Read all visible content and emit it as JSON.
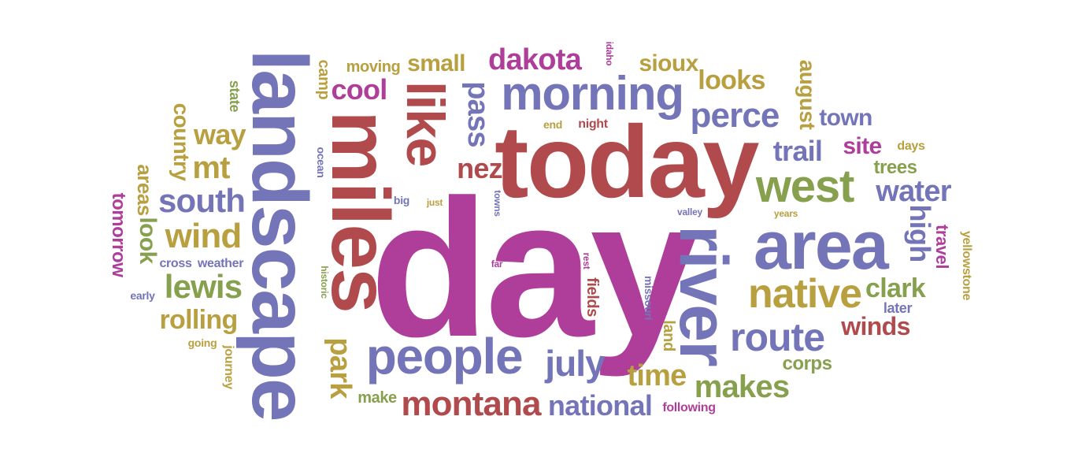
{
  "words": {
    "day": "day",
    "today": "today",
    "landscape": "landscape",
    "miles": "miles",
    "river": "river",
    "area": "area",
    "people": "people",
    "like": "like",
    "morning": "morning",
    "west": "west",
    "native": "native",
    "route": "route",
    "montana": "montana",
    "july": "july",
    "perce": "perce",
    "dakota": "dakota",
    "south": "south",
    "wind": "wind",
    "lewis": "lewis",
    "water": "water",
    "national": "national",
    "makes": "makes",
    "time": "time",
    "pass": "pass",
    "nez": "nez",
    "cool": "cool",
    "trail": "trail",
    "mt": "mt",
    "way": "way",
    "rolling": "rolling",
    "high": "high",
    "clark": "clark",
    "winds": "winds",
    "park": "park",
    "looks": "looks",
    "sioux": "sioux",
    "small": "small",
    "site": "site",
    "town": "town",
    "look": "look",
    "country": "country",
    "august": "august",
    "areas": "areas",
    "tomorrow": "tomorrow",
    "trees": "trees",
    "corps": "corps",
    "travel": "travel",
    "moving": "moving",
    "camp": "camp",
    "state": "state",
    "weather": "weather",
    "cross": "cross",
    "fields": "fields",
    "land": "land",
    "make": "make",
    "following": "following",
    "later": "later",
    "yellowstone": "yellowstone",
    "journey": "journey",
    "going": "going",
    "early": "early",
    "missouri": "missouri",
    "night": "night",
    "end": "end",
    "idaho": "idaho",
    "days": "days",
    "ocean": "ocean",
    "towns": "towns",
    "big": "big",
    "just": "just",
    "valley": "valley",
    "years": "years",
    "historic": "historic",
    "far": "far",
    "rest": "rest"
  }
}
